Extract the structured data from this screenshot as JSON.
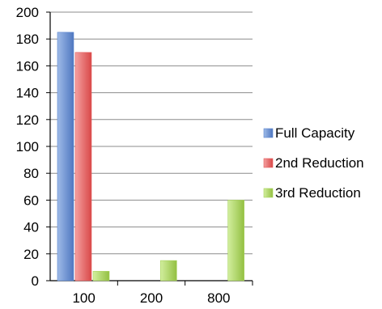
{
  "chart_data": {
    "type": "bar",
    "title": "",
    "xlabel": "",
    "ylabel": "",
    "categories": [
      "100",
      "200",
      "800"
    ],
    "ylim": [
      0,
      200
    ],
    "yticks": [
      0,
      20,
      40,
      60,
      80,
      100,
      120,
      140,
      160,
      180,
      200
    ],
    "grid": true,
    "legend_position": "right",
    "series": [
      {
        "name": "Full Capacity",
        "values": [
          185,
          0,
          0
        ],
        "color": "#5b86cf"
      },
      {
        "name": "2nd Reduction",
        "values": [
          170,
          0,
          0
        ],
        "color": "#e45a5a"
      },
      {
        "name": "3rd Reduction",
        "values": [
          7,
          15,
          60
        ],
        "color": "#a7d25a"
      }
    ]
  }
}
